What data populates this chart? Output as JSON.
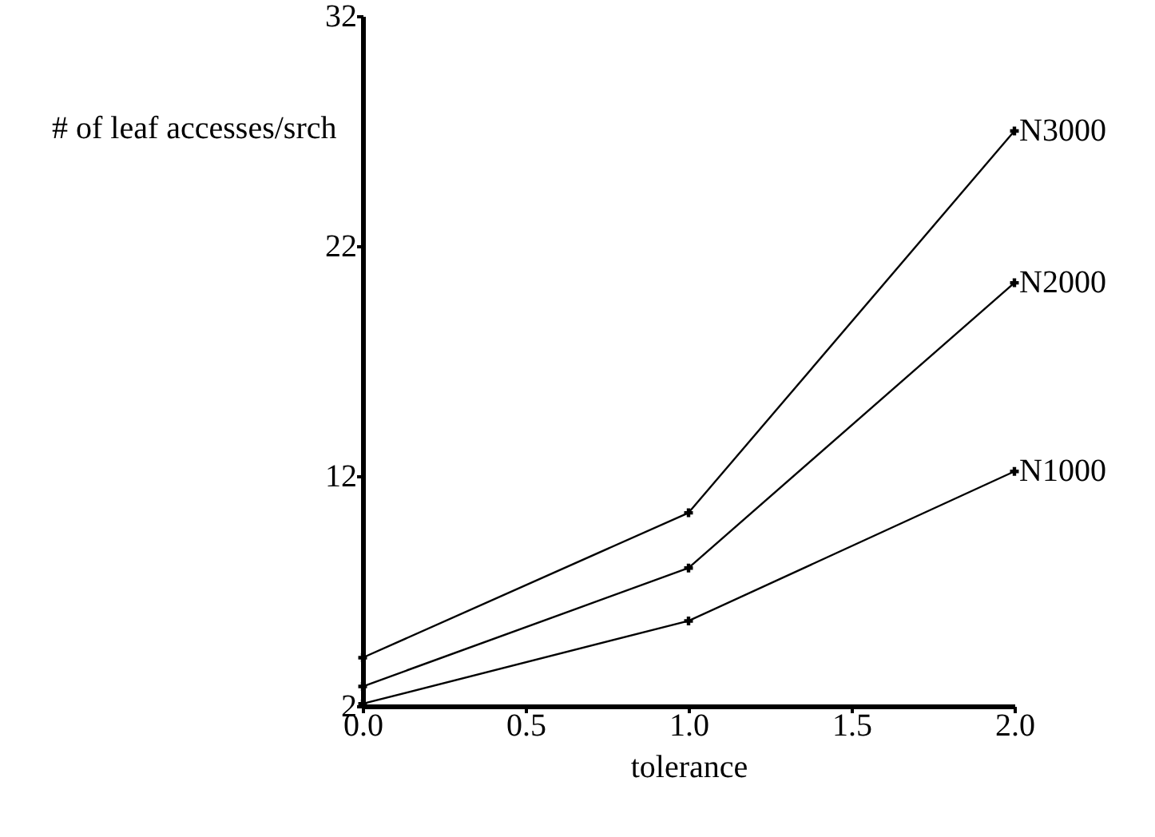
{
  "chart_data": {
    "type": "line",
    "xlabel": "tolerance",
    "ylabel": "# of leaf accesses/srch",
    "x": [
      0,
      1,
      2
    ],
    "series": [
      {
        "name": "N1000",
        "color": "#000000",
        "values": [
          2.1,
          5.7,
          12.2
        ]
      },
      {
        "name": "N2000",
        "color": "#000000",
        "values": [
          2.85,
          8.0,
          20.4
        ]
      },
      {
        "name": "N3000",
        "color": "#000000",
        "values": [
          4.1,
          10.4,
          27.0
        ]
      }
    ],
    "xlim": [
      0,
      2
    ],
    "xticks": [
      {
        "value": 0,
        "label": "0.0"
      },
      {
        "value": 0.5,
        "label": "0.5"
      },
      {
        "value": 1,
        "label": "1.0"
      },
      {
        "value": 1.5,
        "label": "1.5"
      },
      {
        "value": 2,
        "label": "2.0"
      }
    ],
    "ylim": [
      2,
      32
    ],
    "yticks": [
      2,
      12,
      22,
      32
    ],
    "grid": false,
    "marker": "cross",
    "line_style": "solid"
  }
}
